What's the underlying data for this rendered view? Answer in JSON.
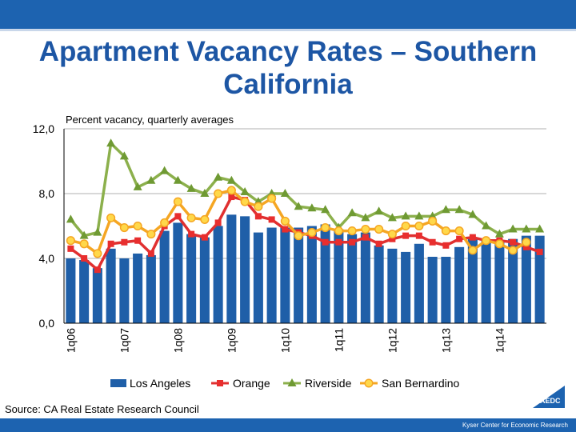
{
  "title": "Apartment Vacancy Rates – Southern California",
  "source": "Source: CA Real Estate Research Council",
  "credit": "Kyser Center for Economic Research",
  "logo_text": "LAEDC",
  "chart_data": {
    "type": "bar",
    "subtitle": "Percent vacancy, quarterly averages",
    "ylim": [
      0,
      12
    ],
    "yticks": [
      "0,0",
      "4,0",
      "8,0",
      "12,0"
    ],
    "ytick_values": [
      0,
      4,
      8,
      12
    ],
    "grid": true,
    "legend_position": "bottom",
    "x_labels": [
      "1q06",
      "1q07",
      "1q08",
      "1q09",
      "1q10",
      "1q11",
      "1q12",
      "1q13",
      "1q14"
    ],
    "x_label_positions": [
      0,
      4,
      8,
      12,
      16,
      20,
      24,
      28,
      32
    ],
    "num_periods": 36,
    "series": [
      {
        "name": "Los Angeles",
        "type": "bar",
        "color": "#1f5fa8",
        "values": [
          4.0,
          3.9,
          3.4,
          4.6,
          4.0,
          4.3,
          4.2,
          5.7,
          6.2,
          5.5,
          5.3,
          6.0,
          6.7,
          6.6,
          5.6,
          5.9,
          5.9,
          5.9,
          6.0,
          6.1,
          5.8,
          5.5,
          5.6,
          4.8,
          4.6,
          4.4,
          4.9,
          4.1,
          4.1,
          4.7,
          5.2,
          5.1,
          5.0,
          5.2,
          5.4,
          5.4
        ]
      },
      {
        "name": "Orange",
        "type": "line",
        "color": "#e03030",
        "values": [
          4.6,
          4.0,
          3.3,
          4.9,
          5.0,
          5.1,
          4.3,
          6.0,
          6.6,
          5.5,
          5.3,
          6.2,
          7.8,
          7.6,
          6.6,
          6.4,
          5.8,
          5.6,
          5.4,
          5.0,
          5.0,
          5.0,
          5.3,
          4.9,
          5.2,
          5.4,
          5.4,
          5.0,
          4.8,
          5.2,
          5.3,
          5.1,
          5.1,
          5.0,
          4.7,
          4.4
        ]
      },
      {
        "name": "Riverside",
        "type": "line",
        "color": "#8cb04c",
        "values": [
          6.4,
          5.4,
          5.6,
          11.1,
          10.3,
          8.4,
          8.8,
          9.4,
          8.8,
          8.3,
          8.0,
          9.0,
          8.8,
          8.1,
          7.5,
          8.0,
          8.0,
          7.2,
          7.1,
          7.0,
          5.9,
          6.8,
          6.5,
          6.9,
          6.5,
          6.6,
          6.6,
          6.6,
          7.0,
          7.0,
          6.7,
          6.0,
          5.5,
          5.8,
          5.8,
          5.8
        ]
      },
      {
        "name": "San Bernardino",
        "type": "line",
        "color": "#f5a623",
        "values": [
          5.1,
          4.9,
          4.3,
          6.5,
          5.9,
          6.0,
          5.5,
          6.2,
          7.5,
          6.5,
          6.4,
          8.0,
          8.2,
          7.5,
          7.2,
          7.7,
          6.3,
          5.4,
          5.6,
          5.9,
          5.7,
          5.7,
          5.8,
          5.8,
          5.5,
          6.0,
          6.0,
          6.3,
          5.7,
          5.7,
          4.5,
          5.1,
          4.9,
          4.5,
          5.0,
          null
        ]
      }
    ]
  }
}
